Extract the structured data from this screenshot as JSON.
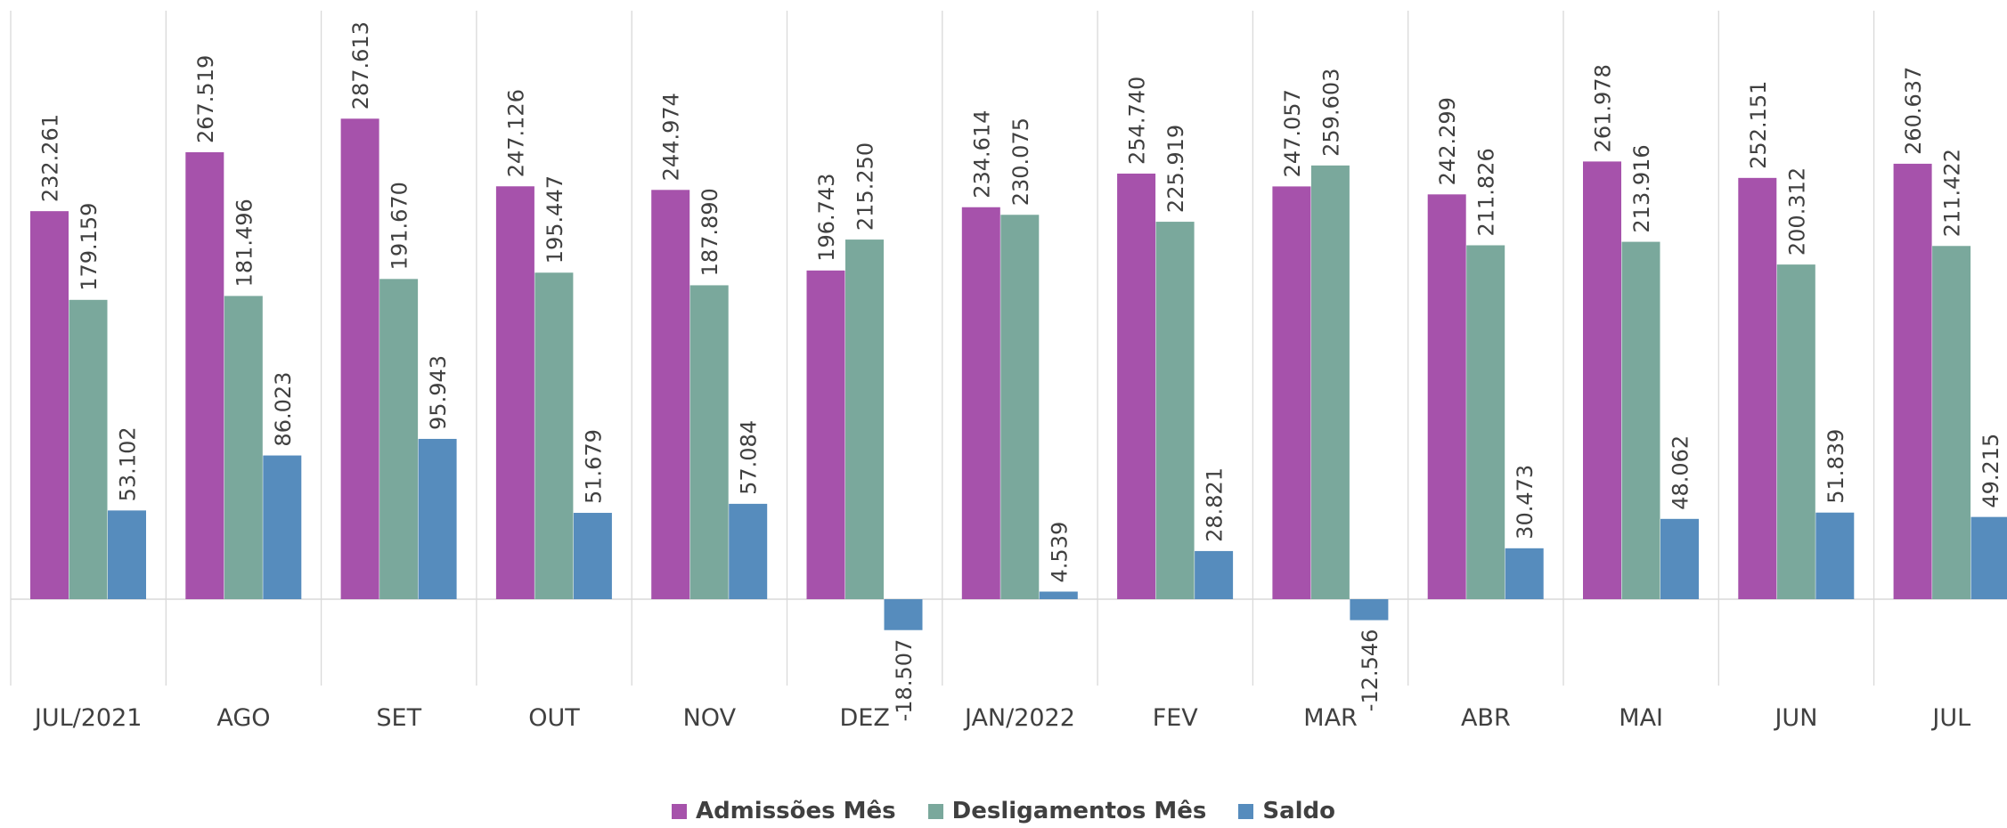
{
  "chart_data": {
    "type": "bar",
    "title": "",
    "xlabel": "",
    "ylabel": "",
    "categories": [
      "JUL/2021",
      "AGO",
      "SET",
      "OUT",
      "NOV",
      "DEZ",
      "JAN/2022",
      "FEV",
      "MAR",
      "ABR",
      "MAI",
      "JUN",
      "JUL"
    ],
    "series": [
      {
        "name": "Admissões Mês",
        "color": "#a652ab",
        "values": [
          232261,
          267519,
          287613,
          247126,
          244974,
          196743,
          234614,
          254740,
          247057,
          242299,
          261978,
          252151,
          260637
        ],
        "labels": [
          "232.261",
          "267.519",
          "287.613",
          "247.126",
          "244.974",
          "196.743",
          "234.614",
          "254.740",
          "247.057",
          "242.299",
          "261.978",
          "252.151",
          "260.637"
        ]
      },
      {
        "name": "Desligamentos Mês",
        "color": "#7aa89c",
        "values": [
          179159,
          181496,
          191670,
          195447,
          187890,
          215250,
          230075,
          225919,
          259603,
          211826,
          213916,
          200312,
          211422
        ],
        "labels": [
          "179.159",
          "181.496",
          "191.670",
          "195.447",
          "187.890",
          "215.250",
          "230.075",
          "225.919",
          "259.603",
          "211.826",
          "213.916",
          "200.312",
          "211.422"
        ]
      },
      {
        "name": "Saldo",
        "color": "#568cbd",
        "values": [
          53102,
          86023,
          95943,
          51679,
          57084,
          -18507,
          4539,
          28821,
          -12546,
          30473,
          48062,
          51839,
          49215
        ],
        "labels": [
          "53.102",
          "86.023",
          "95.943",
          "51.679",
          "57.084",
          "-18.507",
          "4.539",
          "28.821",
          "-12.546",
          "30.473",
          "48.062",
          "51.839",
          "49.215"
        ]
      }
    ],
    "ylim": [
      -50000,
      350000
    ],
    "grid": false,
    "legend_position": "bottom"
  }
}
